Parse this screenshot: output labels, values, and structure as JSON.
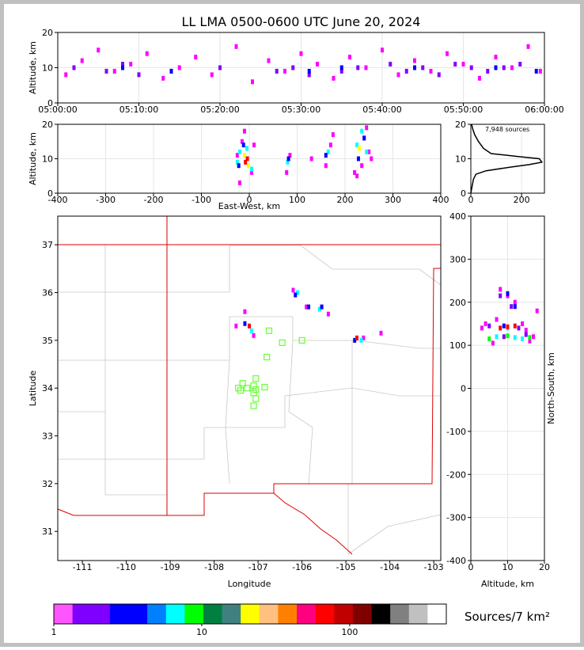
{
  "chart_data": [
    {
      "type": "scatter",
      "title": "LL LMA 0500-0600 UTC June 20, 2024",
      "ylabel": "Altitude, km",
      "xlim": [
        0,
        60
      ],
      "xticks": [
        {
          "value": 0,
          "label": "05:00:00"
        },
        {
          "value": 10,
          "label": "05:10:00"
        },
        {
          "value": 20,
          "label": "05:20:00"
        },
        {
          "value": 30,
          "label": "05:30:00"
        },
        {
          "value": 40,
          "label": "05:40:00"
        },
        {
          "value": 50,
          "label": "05:50:00"
        },
        {
          "value": 60,
          "label": "06:00:00"
        }
      ],
      "ylim": [
        0,
        20
      ],
      "yticks": [
        0,
        10,
        20
      ],
      "grid": true,
      "series": [
        {
          "color": "#ff00ff",
          "x": [
            1,
            3,
            5,
            7,
            9,
            11,
            13,
            15,
            17,
            19,
            22,
            24,
            26,
            28,
            30,
            32,
            34,
            36,
            38,
            40,
            42,
            44,
            46,
            48,
            50,
            52,
            54,
            56,
            58,
            59.5
          ],
          "values": [
            8,
            12,
            15,
            9,
            11,
            14,
            7,
            10,
            13,
            8,
            16,
            6,
            12,
            9,
            14,
            11,
            7,
            13,
            10,
            15,
            8,
            12,
            9,
            14,
            11,
            7,
            13,
            10,
            16,
            9
          ]
        },
        {
          "color": "#8000ff",
          "x": [
            2,
            6,
            8,
            10,
            14,
            20,
            27,
            29,
            31,
            35,
            37,
            41,
            43,
            45,
            47,
            49,
            51,
            53,
            55,
            57
          ],
          "values": [
            10,
            9,
            11,
            8,
            9,
            10,
            9,
            10,
            8,
            9,
            10,
            11,
            9,
            10,
            8,
            11,
            10,
            9,
            10,
            11
          ]
        },
        {
          "color": "#0000ff",
          "x": [
            8,
            14,
            31,
            35,
            44,
            54,
            59
          ],
          "values": [
            10,
            9,
            9,
            10,
            10,
            10,
            9
          ]
        }
      ]
    },
    {
      "type": "scatter",
      "xlabel": "East-West, km",
      "ylabel": "Altitude, km",
      "xlim": [
        -400,
        400
      ],
      "xticks": [
        -400,
        -300,
        -200,
        -100,
        0,
        100,
        200,
        300,
        400
      ],
      "ylim": [
        0,
        20
      ],
      "yticks": [
        0,
        10,
        20
      ],
      "grid": true,
      "series": [
        {
          "color": "#ff00ff",
          "x": [
            -20,
            -15,
            -10,
            5,
            10,
            -25,
            78,
            85,
            130,
            160,
            170,
            175,
            220,
            235,
            245,
            250,
            240,
            225,
            255
          ],
          "values": [
            3,
            15,
            18,
            6,
            14,
            11,
            6,
            11,
            10,
            8,
            14,
            17,
            6,
            8,
            19,
            12,
            16,
            5,
            10
          ]
        },
        {
          "color": "#00ffff",
          "x": [
            -25,
            -20,
            -5,
            5,
            80,
            165,
            225,
            235,
            245
          ],
          "values": [
            9,
            12,
            13,
            7,
            9,
            12,
            14,
            18,
            12
          ]
        },
        {
          "color": "#0000ff",
          "x": [
            -22,
            -12,
            82,
            228,
            240,
            160
          ],
          "values": [
            8,
            14,
            10,
            10,
            16,
            11
          ]
        },
        {
          "color": "#ffff00",
          "x": [
            -10,
            -2,
            230
          ],
          "values": [
            11,
            8,
            13
          ]
        },
        {
          "color": "#ff0000",
          "x": [
            -8,
            -4
          ],
          "values": [
            9,
            10
          ]
        }
      ]
    },
    {
      "type": "line",
      "annotation": "7,948 sources",
      "xlim": [
        0,
        290
      ],
      "xticks": [
        0,
        200
      ],
      "ylim": [
        0,
        20
      ],
      "yticks": [
        0,
        10,
        20
      ],
      "grid": true,
      "series": [
        {
          "color": "#000000",
          "x": [
            0,
            5,
            10,
            20,
            60,
            150,
            230,
            280,
            270,
            180,
            80,
            50,
            30,
            15,
            8,
            3
          ],
          "values": [
            0,
            2,
            4,
            5.5,
            6.5,
            7.5,
            8.3,
            9,
            10,
            10.7,
            11.5,
            13,
            15,
            17,
            18.5,
            20
          ]
        }
      ]
    },
    {
      "type": "scatter",
      "xlabel": "Longitude",
      "ylabel": "Latitude",
      "xlim": [
        -111.56,
        -102.84
      ],
      "xticks": [
        -111,
        -110,
        -109,
        -108,
        -107,
        -106,
        -105,
        -104,
        -103
      ],
      "ylim": [
        30.39,
        37.6
      ],
      "yticks": [
        31,
        32,
        33,
        34,
        35,
        36,
        37
      ],
      "grid": false,
      "series": [
        {
          "color": "#ff00ff",
          "x": [
            -107.5,
            -107.1,
            -106.2,
            -105.4,
            -104.6,
            -104.2,
            -105.9,
            -107.3
          ],
          "values": [
            35.3,
            35.1,
            36.05,
            35.55,
            35.05,
            35.15,
            35.7,
            35.6
          ]
        },
        {
          "color": "#00ffff",
          "x": [
            -107.15,
            -106.1,
            -105.6,
            -104.65
          ],
          "values": [
            35.2,
            36.0,
            35.65,
            35.0
          ]
        },
        {
          "color": "#0000ff",
          "x": [
            -107.3,
            -106.15,
            -105.55,
            -104.8,
            -105.85
          ],
          "values": [
            35.35,
            35.95,
            35.7,
            35.0,
            35.7
          ]
        },
        {
          "color": "#ff0000",
          "x": [
            -107.2,
            -104.75
          ],
          "values": [
            35.3,
            35.05
          ]
        },
        {
          "color": "#66ff33",
          "marker": "square",
          "x": [
            -106.75,
            -106.45,
            -106.0,
            -106.8,
            -107.05,
            -107.35,
            -107.1,
            -107.45,
            -107.25,
            -107.05,
            -106.85,
            -107.1,
            -107.05,
            -107.1,
            -107.4
          ],
          "values": [
            35.2,
            34.95,
            35.0,
            34.65,
            34.2,
            34.1,
            34.05,
            34.0,
            34.0,
            33.97,
            34.02,
            33.9,
            33.78,
            33.63,
            33.95
          ]
        }
      ]
    },
    {
      "type": "scatter",
      "xlabel": "Altitude, km",
      "ylabel": "North-South, km",
      "xlim": [
        0,
        20
      ],
      "xticks": [
        0,
        10,
        20
      ],
      "ylim": [
        -400,
        400
      ],
      "yticks": [
        -400,
        -300,
        -200,
        -100,
        0,
        100,
        200,
        300,
        400
      ],
      "grid": true,
      "series": [
        {
          "color": "#ff00ff",
          "x": [
            3,
            6,
            14,
            17,
            12,
            8,
            18,
            16,
            4,
            15,
            10,
            7
          ],
          "values": [
            140,
            105,
            150,
            120,
            200,
            230,
            180,
            110,
            150,
            135,
            215,
            160
          ]
        },
        {
          "color": "#8000ff",
          "x": [
            5,
            9,
            13,
            11,
            15,
            8
          ],
          "values": [
            145,
            120,
            140,
            190,
            125,
            215
          ]
        },
        {
          "color": "#00ffff",
          "x": [
            7,
            12,
            10,
            14
          ],
          "values": [
            120,
            118,
            140,
            115
          ]
        },
        {
          "color": "#00ff00",
          "x": [
            5,
            10,
            16
          ],
          "values": [
            115,
            122,
            118
          ]
        },
        {
          "color": "#0000ff",
          "x": [
            10,
            12,
            9
          ],
          "values": [
            220,
            190,
            145
          ]
        },
        {
          "color": "#ff0000",
          "x": [
            8,
            10,
            12
          ],
          "values": [
            140,
            143,
            145
          ]
        }
      ]
    },
    {
      "type": "colorbar",
      "label": "Sources/7 km²",
      "xlim": [
        1,
        450
      ],
      "xlog": true,
      "xticks": [
        1,
        10,
        100
      ],
      "colors": [
        "#ff55ff",
        "#8000ff",
        "#8000ff",
        "#0000ff",
        "#0000ff",
        "#0080ff",
        "#00ffff",
        "#00ff00",
        "#008040",
        "#408080",
        "#ffff00",
        "#ffc080",
        "#ff8000",
        "#ff0080",
        "#ff0000",
        "#c00000",
        "#800000",
        "#000000",
        "#808080",
        "#c0c0c0",
        "#ffffff"
      ]
    }
  ]
}
